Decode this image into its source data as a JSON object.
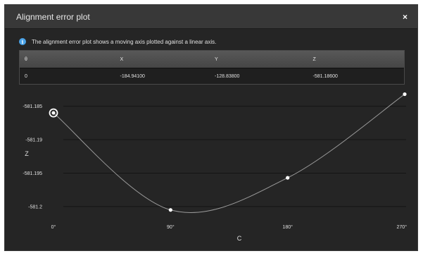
{
  "dialog": {
    "title": "Alignment error plot",
    "close_label": "×",
    "info_text": "The alignment error plot shows a moving axis plotted against a linear axis.",
    "info_icon": "info-icon"
  },
  "table": {
    "headers": [
      "θ",
      "X",
      "Y",
      "Z"
    ],
    "rows": [
      [
        "0",
        "-184.94100",
        "-128.83800",
        "-581.18600"
      ]
    ]
  },
  "chart_data": {
    "type": "line",
    "xlabel": "C",
    "ylabel": "Z",
    "categories": [
      "0°",
      "90°",
      "180°",
      "270°"
    ],
    "x": [
      0,
      90,
      180,
      270
    ],
    "values": [
      -581.186,
      -581.2005,
      -581.1957,
      -581.1832
    ],
    "ylim": [
      -581.2018,
      -581.1823
    ],
    "yticks": [
      -581.185,
      -581.19,
      -581.195,
      -581.2
    ],
    "ytick_labels": [
      "-581.185",
      "-581.19",
      "-581.195",
      "-581.2"
    ],
    "highlighted_point": 0,
    "grid": "horizontal",
    "colors": {
      "line": "#9a9a9a",
      "point": "#ffffff",
      "grid": "#141414",
      "text": "#e0e0e0"
    }
  }
}
